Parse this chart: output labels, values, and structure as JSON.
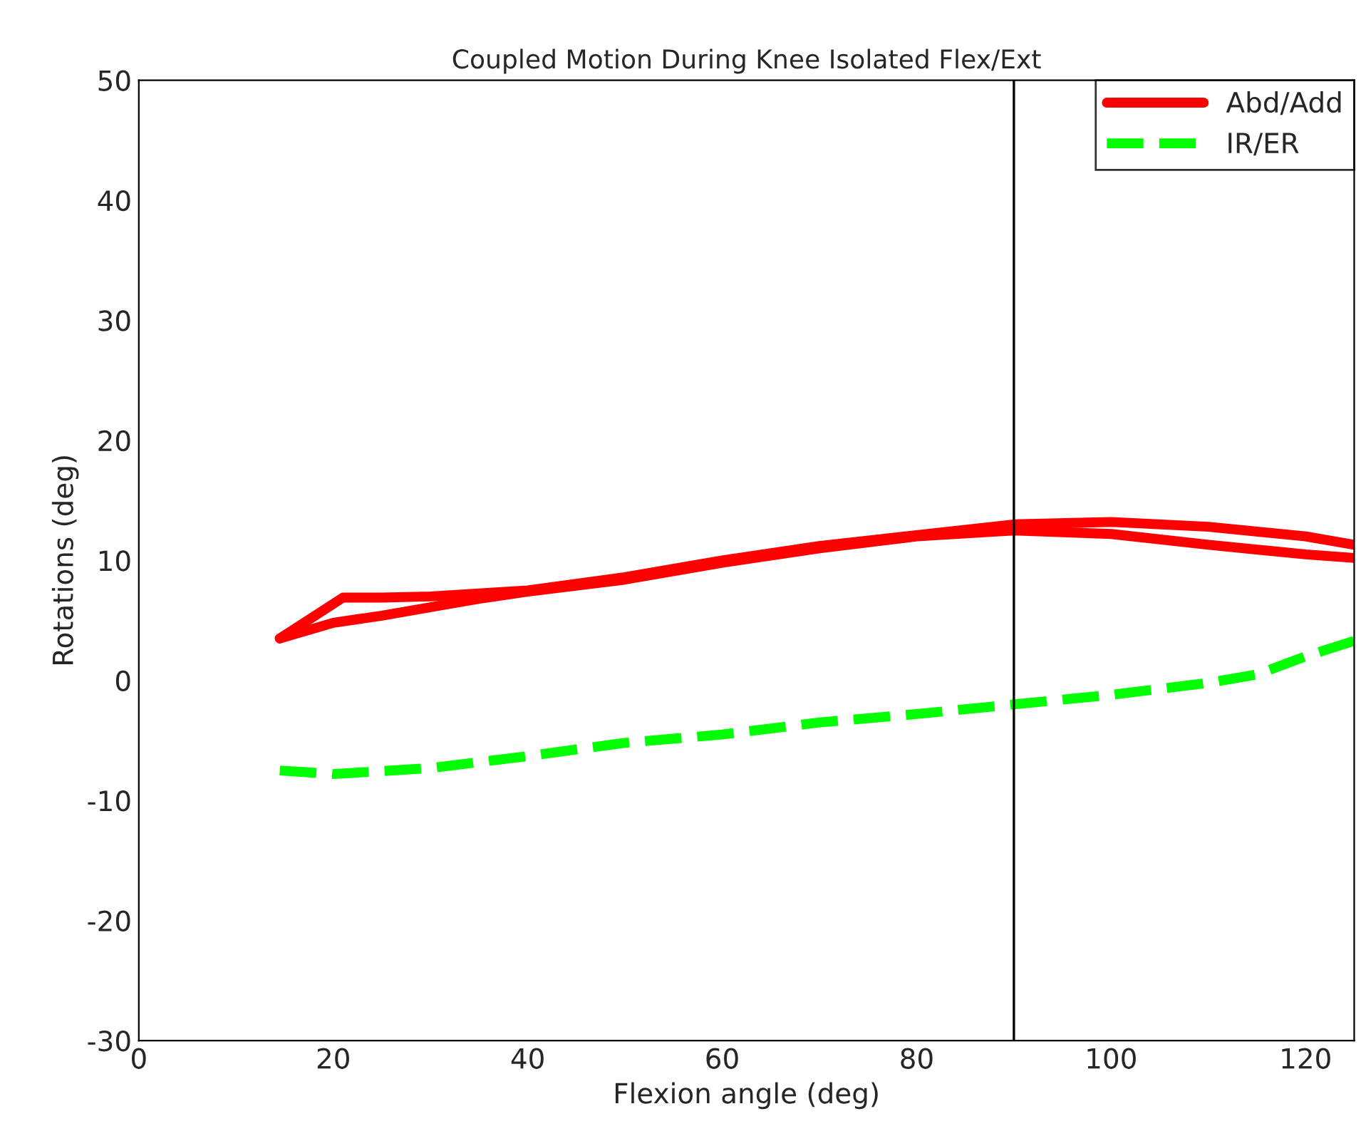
{
  "chart_data": {
    "type": "line",
    "title": "Coupled Motion During Knee Isolated Flex/Ext",
    "xlabel": "Flexion angle (deg)",
    "ylabel": "Rotations (deg)",
    "series": [
      {
        "name": "Abd/Add",
        "color": "#ff0000",
        "line_style": "solid",
        "x": [
          14.5,
          20,
          25,
          30,
          35,
          40,
          50,
          60,
          70,
          80,
          90,
          100,
          110,
          120,
          125
        ],
        "values": [
          3.5,
          4.8,
          5.4,
          6.1,
          6.8,
          7.4,
          8.4,
          9.8,
          11,
          12,
          12.5,
          12.2,
          11.3,
          10.5,
          10.2
        ]
      },
      {
        "color": "#ff0000",
        "line_style": "solid",
        "x": [
          14.5,
          21,
          25,
          30,
          40,
          50,
          60,
          70,
          80,
          90,
          100,
          110,
          120,
          125
        ],
        "values": [
          3.5,
          6.9,
          6.9,
          7,
          7.5,
          8.6,
          10,
          11.2,
          12.1,
          13,
          13.2,
          12.8,
          12,
          11.3
        ]
      },
      {
        "name": "IR/ER",
        "color": "#00ff00",
        "line_style": "dashed",
        "x": [
          14.5,
          20,
          30,
          40,
          50,
          60,
          70,
          80,
          90,
          100,
          110,
          115,
          120,
          125
        ],
        "values": [
          -7.5,
          -7.8,
          -7.3,
          -6.3,
          -5.2,
          -4.5,
          -3.5,
          -2.8,
          -2,
          -1.2,
          -0.2,
          0.5,
          2,
          3.3
        ]
      }
    ],
    "ref_lines": [
      {
        "axis": "x",
        "value": 90,
        "label": null,
        "color": "#000000"
      }
    ],
    "xlim": [
      0,
      125
    ],
    "xticks": [
      0,
      20,
      40,
      60,
      80,
      100,
      120
    ],
    "ylim": [
      -30,
      50
    ],
    "yticks": [
      -30,
      -20,
      -10,
      0,
      10,
      20,
      30,
      40,
      50
    ],
    "grid": false,
    "legend": "top right",
    "marker": "none"
  }
}
